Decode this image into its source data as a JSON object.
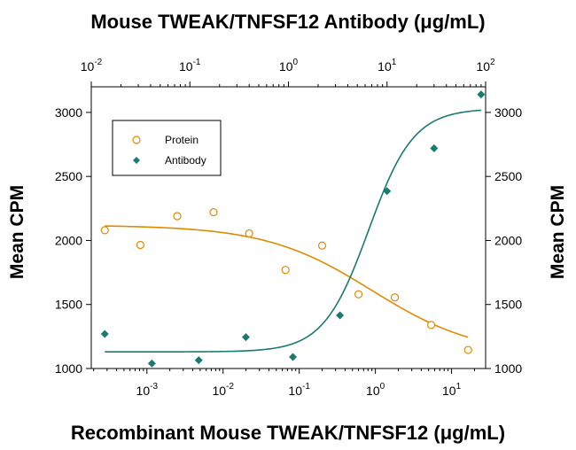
{
  "chart_data": {
    "type": "scatter",
    "title": "Mouse TWEAK/TNFSF12 Antibody (μg/mL)",
    "xlabel": "Recombinant Mouse TWEAK/TNFSF12 (μg/mL)",
    "ylabel": "Mean CPM",
    "ylabel_right": "Mean CPM",
    "x_scale": "log",
    "x2_scale": "log",
    "xlim": [
      0.000186,
      28.0
    ],
    "x2lim": [
      0.01,
      100
    ],
    "ylim": [
      1000,
      3200
    ],
    "y_ticks": [
      1000,
      1500,
      2000,
      2500,
      3000
    ],
    "x_ticks": [
      {
        "label": "10",
        "exp": "-3",
        "value": 0.001
      },
      {
        "label": "10",
        "exp": "-2",
        "value": 0.01
      },
      {
        "label": "10",
        "exp": "-1",
        "value": 0.1
      },
      {
        "label": "10",
        "exp": "0",
        "value": 1
      },
      {
        "label": "10",
        "exp": "1",
        "value": 10
      }
    ],
    "x2_ticks": [
      {
        "label": "10",
        "exp": "-2",
        "value": 0.01
      },
      {
        "label": "10",
        "exp": "-1",
        "value": 0.1
      },
      {
        "label": "10",
        "exp": "0",
        "value": 1
      },
      {
        "label": "10",
        "exp": "1",
        "value": 10
      },
      {
        "label": "10",
        "exp": "2",
        "value": 100
      }
    ],
    "legend_position": "top-left",
    "series": [
      {
        "name": "Protein",
        "axis": "bottom",
        "marker": "open-circle",
        "color": "#e08a00",
        "x": [
          0.00028,
          0.00082,
          0.0025,
          0.0075,
          0.022,
          0.066,
          0.2,
          0.6,
          1.8,
          5.4,
          16.5
        ],
        "y": [
          2080,
          1965,
          2190,
          2220,
          2055,
          1770,
          1960,
          1580,
          1555,
          1340,
          1145
        ],
        "fit": {
          "bottom": 1100,
          "top": 2120,
          "ec50": 0.9,
          "hill": 0.62
        }
      },
      {
        "name": "Antibody",
        "axis": "top",
        "marker": "filled-diamond",
        "color": "#1a7a70",
        "x": [
          0.0137,
          0.0412,
          0.123,
          0.37,
          1.11,
          3.33,
          10.0,
          30.0,
          90.0
        ],
        "y": [
          1270,
          1040,
          1065,
          1245,
          1090,
          1415,
          2385,
          2720,
          3140
        ],
        "fit": {
          "bottom": 1130,
          "top": 3030,
          "ec50": 6.5,
          "hill": 1.9
        }
      }
    ]
  }
}
